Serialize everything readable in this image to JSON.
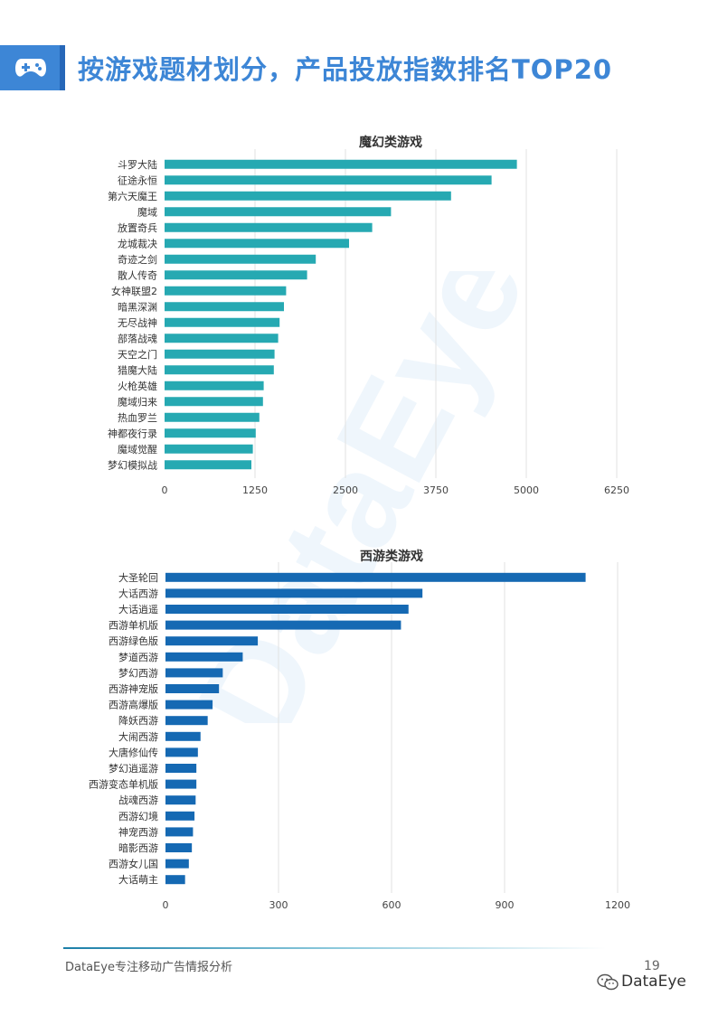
{
  "header": {
    "icon": "gamepad-icon",
    "title": "按游戏题材划分，产品投放指数排名TOP20"
  },
  "watermark": "DataEye",
  "chart_data": [
    {
      "type": "bar",
      "orientation": "horizontal",
      "title": "魔幻类游戏",
      "categories": [
        "斗罗大陆",
        "征途永恒",
        "第六天魔王",
        "魔域",
        "放置奇兵",
        "龙城裁决",
        "奇迹之剑",
        "散人传奇",
        "女神联盟2",
        "暗黑深渊",
        "无尽战神",
        "部落战魂",
        "天空之门",
        "猎魔大陆",
        "火枪英雄",
        "魔域归来",
        "热血罗兰",
        "神都夜行录",
        "魔域觉醒",
        "梦幻模拟战"
      ],
      "values": [
        4870,
        4520,
        3960,
        3130,
        2870,
        2550,
        2090,
        1970,
        1680,
        1650,
        1590,
        1570,
        1520,
        1510,
        1370,
        1360,
        1310,
        1260,
        1220,
        1200
      ],
      "xlim": [
        0,
        6250
      ],
      "ticks": [
        0,
        1250,
        2500,
        3750,
        5000,
        6250
      ],
      "tick_labels": [
        "0",
        "1250",
        "2500",
        "3750",
        "5000",
        "6250"
      ],
      "grid": true,
      "color": "#26a9b2"
    },
    {
      "type": "bar",
      "orientation": "horizontal",
      "title": "西游类游戏",
      "categories": [
        "大圣轮回",
        "大话西游",
        "大话逍遥",
        "西游单机版",
        "西游绿色版",
        "梦道西游",
        "梦幻西游",
        "西游神宠版",
        "西游高爆版",
        "降妖西游",
        "大闹西游",
        "大唐修仙传",
        "梦幻逍遥游",
        "西游变态单机版",
        "战魂西游",
        "西游幻境",
        "神宠西游",
        "暗影西游",
        "西游女儿国",
        "大话萌主"
      ],
      "values": [
        1115,
        682,
        645,
        625,
        245,
        205,
        152,
        142,
        125,
        112,
        93,
        86,
        82,
        82,
        80,
        77,
        73,
        70,
        62,
        52
      ],
      "xlim": [
        0,
        1200
      ],
      "ticks": [
        0,
        300,
        600,
        900,
        1200
      ],
      "tick_labels": [
        "0",
        "300",
        "600",
        "900",
        "1200"
      ],
      "grid": true,
      "color": "#1569b3"
    }
  ],
  "footer": {
    "left_text": "DataEye专注移动广告情报分析",
    "page_number": "19",
    "brand_icon": "wechat-icon",
    "brand": "DataEye"
  }
}
